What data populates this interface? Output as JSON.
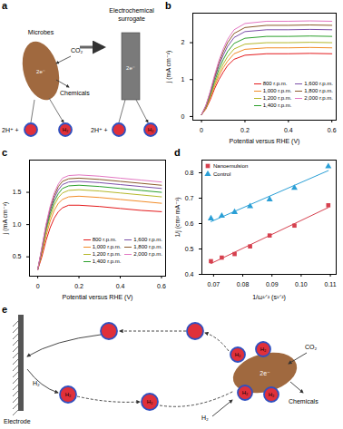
{
  "diagram_a": {
    "title": "a",
    "microbe": {
      "label": "Microbes",
      "input": "CO₂",
      "output": "Chemicals",
      "electrons": "2e⁻",
      "protons": "2H⁺ +",
      "product": "H₂"
    },
    "surrogate": {
      "label": "Electrochemical surrogate",
      "electrons": "2e⁻",
      "protons": "2H⁺ +",
      "product": "H₂"
    }
  },
  "chart_data": [
    {
      "type": "line",
      "title": "b",
      "x_label": "Potential versus RHE (V)",
      "y_label": "j (mA cm⁻²)",
      "x": [
        0,
        0.02,
        0.04,
        0.06,
        0.08,
        0.1,
        0.12,
        0.15,
        0.2,
        0.3,
        0.4,
        0.5,
        0.6
      ],
      "xlim": [
        -0.04,
        0.62
      ],
      "xticks": [
        0,
        0.2,
        0.4,
        0.6
      ],
      "ylim": [
        -0.1,
        2.8
      ],
      "yticks": [
        0,
        1,
        2
      ],
      "legend": "bottom-right",
      "series": [
        {
          "name": "800 r.p.m.",
          "color": "#e41a1c",
          "values": [
            0.05,
            0.2,
            0.45,
            0.75,
            1.0,
            1.2,
            1.38,
            1.55,
            1.66,
            1.7,
            1.7,
            1.71,
            1.7
          ]
        },
        {
          "name": "1,000 r.p.m.",
          "color": "#f28c28",
          "values": [
            0.05,
            0.22,
            0.5,
            0.82,
            1.1,
            1.32,
            1.5,
            1.7,
            1.82,
            1.86,
            1.86,
            1.87,
            1.86
          ]
        },
        {
          "name": "1,200 r.p.m.",
          "color": "#b5b82a",
          "values": [
            0.05,
            0.24,
            0.54,
            0.88,
            1.18,
            1.42,
            1.62,
            1.83,
            1.96,
            2.0,
            2.0,
            2.01,
            2.0
          ]
        },
        {
          "name": "1,400 r.p.m.",
          "color": "#2ca02c",
          "values": [
            0.05,
            0.26,
            0.58,
            0.95,
            1.28,
            1.54,
            1.76,
            1.98,
            2.12,
            2.17,
            2.17,
            2.18,
            2.17
          ]
        },
        {
          "name": "1,600 r.p.m.",
          "color": "#7b4fa8",
          "values": [
            0.05,
            0.28,
            0.62,
            1.02,
            1.38,
            1.66,
            1.9,
            2.14,
            2.3,
            2.35,
            2.35,
            2.36,
            2.35
          ]
        },
        {
          "name": "1,800 r.p.m.",
          "color": "#8b5a2b",
          "values": [
            0.05,
            0.29,
            0.65,
            1.07,
            1.45,
            1.75,
            2.0,
            2.25,
            2.41,
            2.47,
            2.47,
            2.48,
            2.47
          ]
        },
        {
          "name": "2,000 r.p.m.",
          "color": "#e377c2",
          "values": [
            0.05,
            0.3,
            0.68,
            1.12,
            1.51,
            1.83,
            2.09,
            2.35,
            2.52,
            2.58,
            2.58,
            2.59,
            2.58
          ]
        }
      ]
    },
    {
      "type": "line",
      "title": "c",
      "x_label": "Potential versus RHE (V)",
      "y_label": "j (mA cm⁻²)",
      "x": [
        0,
        0.02,
        0.04,
        0.06,
        0.08,
        0.1,
        0.12,
        0.15,
        0.2,
        0.3,
        0.4,
        0.5,
        0.6
      ],
      "xlim": [
        -0.04,
        0.62
      ],
      "xticks": [
        0,
        0.2,
        0.4,
        0.6
      ],
      "ylim": [
        0.2,
        2.0
      ],
      "yticks": [
        0.5,
        {
          "value": 1,
          "label": "1.0"
        },
        1.5
      ],
      "legend": "bottom-right",
      "series": [
        {
          "name": "800 r.p.m.",
          "color": "#e41a1c",
          "values": [
            0.3,
            0.5,
            0.75,
            0.95,
            1.1,
            1.2,
            1.26,
            1.3,
            1.3,
            1.28,
            1.25,
            1.22,
            1.2
          ]
        },
        {
          "name": "1,000 r.p.m.",
          "color": "#f28c28",
          "values": [
            0.3,
            0.55,
            0.82,
            1.05,
            1.22,
            1.33,
            1.39,
            1.43,
            1.44,
            1.42,
            1.39,
            1.36,
            1.33
          ]
        },
        {
          "name": "1,200 r.p.m.",
          "color": "#b5b82a",
          "values": [
            0.3,
            0.58,
            0.88,
            1.12,
            1.3,
            1.42,
            1.49,
            1.53,
            1.54,
            1.52,
            1.49,
            1.46,
            1.43
          ]
        },
        {
          "name": "1,400 r.p.m.",
          "color": "#2ca02c",
          "values": [
            0.3,
            0.6,
            0.92,
            1.17,
            1.36,
            1.48,
            1.56,
            1.6,
            1.61,
            1.59,
            1.56,
            1.53,
            1.5
          ]
        },
        {
          "name": "1,600 r.p.m.",
          "color": "#7b4fa8",
          "values": [
            0.3,
            0.62,
            0.95,
            1.21,
            1.41,
            1.54,
            1.62,
            1.66,
            1.67,
            1.65,
            1.62,
            1.59,
            1.56
          ]
        },
        {
          "name": "1,800 r.p.m.",
          "color": "#8b5a2b",
          "values": [
            0.3,
            0.63,
            0.98,
            1.25,
            1.45,
            1.59,
            1.67,
            1.71,
            1.72,
            1.7,
            1.67,
            1.64,
            1.61
          ]
        },
        {
          "name": "2,000 r.p.m.",
          "color": "#e377c2",
          "values": [
            0.3,
            0.65,
            1.0,
            1.28,
            1.49,
            1.63,
            1.72,
            1.76,
            1.77,
            1.75,
            1.72,
            1.69,
            1.66
          ]
        }
      ]
    },
    {
      "type": "scatter",
      "title": "d",
      "x_label": "1/ω¹ᐟ² (s¹ᐟ²)",
      "y_label": "1/j (cm² mA⁻¹)",
      "x": [
        0.0691,
        0.0728,
        0.0772,
        0.0825,
        0.0892,
        0.0977,
        0.1093
      ],
      "xlim": [
        0.066,
        0.112
      ],
      "xticks": [
        0.07,
        0.08,
        0.09,
        {
          "value": 0.1,
          "label": "0.10"
        },
        0.11
      ],
      "ylim": [
        0.4,
        0.85
      ],
      "yticks": [
        0.4,
        0.5,
        0.6,
        0.7,
        0.8
      ],
      "legend": "top-left",
      "series": [
        {
          "name": "Nanoemulsion",
          "color": "#d6404e",
          "marker": "square",
          "values": [
            0.452,
            0.466,
            0.48,
            0.51,
            0.553,
            0.592,
            0.672
          ]
        },
        {
          "name": "Control",
          "color": "#2a9fd6",
          "marker": "triangle",
          "values": [
            0.62,
            0.63,
            0.645,
            0.668,
            0.695,
            0.74,
            0.825
          ]
        }
      ]
    }
  ],
  "diagram_e": {
    "title": "e",
    "electrode": "Electrode",
    "droplet_label": "H₂",
    "gas": "H₂",
    "electrons": "2e⁻",
    "input": "CO₂",
    "output": "Chemicals"
  }
}
